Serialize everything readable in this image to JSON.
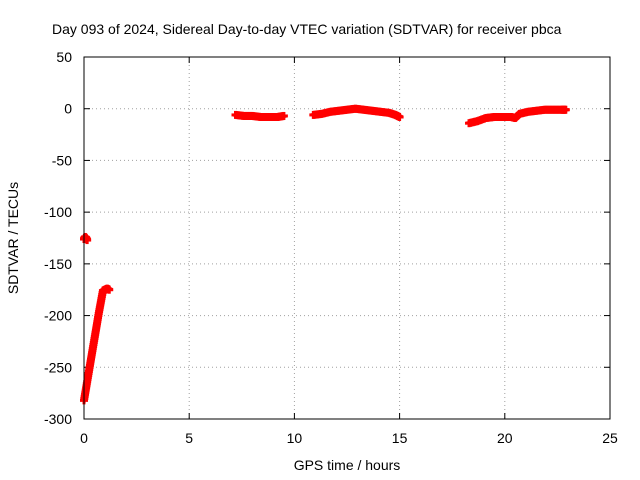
{
  "chart_data": {
    "type": "scatter",
    "title": "Day 093 of 2024, Sidereal Day-to-day VTEC variation (SDTVAR) for receiver pbca",
    "xlabel": "GPS time / hours",
    "ylabel": "SDTVAR / TECUs",
    "xlim": [
      0,
      25
    ],
    "ylim": [
      -300,
      50
    ],
    "xticks": [
      0,
      5,
      10,
      15,
      20,
      25
    ],
    "yticks": [
      -300,
      -250,
      -200,
      -150,
      -100,
      -50,
      0,
      50
    ],
    "grid": true,
    "marker_color": "#ff0000",
    "x": [
      0.0,
      0.05,
      0.1,
      0.15,
      0.0,
      0.1,
      0.2,
      0.3,
      0.4,
      0.5,
      0.6,
      0.7,
      0.8,
      0.9,
      1.0,
      1.1,
      1.2,
      7.2,
      7.6,
      8.0,
      8.4,
      8.8,
      9.2,
      9.5,
      10.9,
      11.3,
      11.7,
      12.1,
      12.5,
      12.9,
      13.3,
      13.7,
      14.1,
      14.5,
      14.8,
      15.0,
      18.3,
      18.7,
      19.1,
      19.5,
      19.9,
      20.3,
      20.5,
      20.7,
      21.1,
      21.5,
      21.9,
      22.3,
      22.7,
      22.9
    ],
    "y": [
      -126,
      -124,
      -125,
      -127,
      -282,
      -270,
      -258,
      -246,
      -234,
      -222,
      -210,
      -198,
      -187,
      -176,
      -175,
      -174,
      -175,
      -6,
      -7,
      -7,
      -8,
      -8,
      -8,
      -7,
      -6,
      -5,
      -3,
      -2,
      -1,
      0,
      -1,
      -2,
      -3,
      -4,
      -6,
      -8,
      -14,
      -12,
      -9,
      -8,
      -8,
      -8,
      -9,
      -5,
      -3,
      -2,
      -1,
      -1,
      -1,
      -1
    ]
  }
}
